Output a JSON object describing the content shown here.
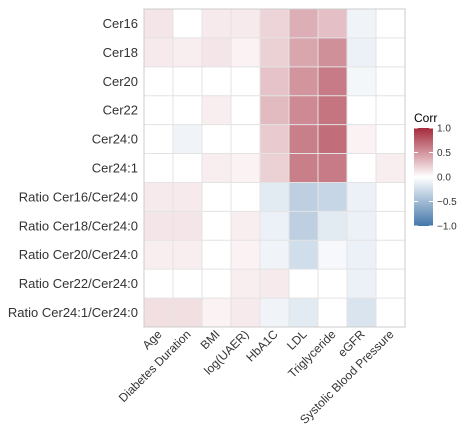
{
  "chart_data": {
    "type": "heatmap",
    "rows": [
      "Cer16",
      "Cer18",
      "Cer20",
      "Cer22",
      "Cer24:0",
      "Cer24:1",
      "Ratio Cer16/Cer24:0",
      "Ratio Cer18/Cer24:0",
      "Ratio Cer20/Cer24:0",
      "Ratio Cer22/Cer24:0",
      "Ratio Cer24:1/Cer24:0"
    ],
    "columns": [
      "Age",
      "Diabetes Duration",
      "BMI",
      "log(UAER)",
      "HbA1C",
      "LDL",
      "Triglyceride",
      "eGFR",
      "Systolic Blood Pressure"
    ],
    "values": [
      [
        0.12,
        0.0,
        0.1,
        0.1,
        0.2,
        0.38,
        0.3,
        -0.08,
        0.0
      ],
      [
        0.1,
        0.08,
        0.12,
        0.06,
        0.22,
        0.42,
        0.52,
        -0.1,
        0.0
      ],
      [
        0.0,
        0.0,
        0.0,
        0.0,
        0.28,
        0.5,
        0.62,
        -0.06,
        0.0
      ],
      [
        0.0,
        0.0,
        0.08,
        0.0,
        0.32,
        0.55,
        0.65,
        0.0,
        0.0
      ],
      [
        0.0,
        -0.08,
        0.0,
        0.0,
        0.25,
        0.6,
        0.68,
        0.06,
        0.0
      ],
      [
        0.0,
        0.0,
        0.08,
        0.06,
        0.22,
        0.6,
        0.62,
        0.0,
        0.08
      ],
      [
        0.1,
        0.1,
        0.0,
        0.0,
        -0.15,
        -0.35,
        -0.3,
        -0.1,
        0.0
      ],
      [
        0.12,
        0.12,
        0.0,
        0.08,
        -0.1,
        -0.35,
        -0.15,
        -0.1,
        0.0
      ],
      [
        0.08,
        0.08,
        0.0,
        0.06,
        -0.08,
        -0.25,
        -0.05,
        -0.1,
        0.0
      ],
      [
        0.0,
        0.0,
        0.0,
        0.08,
        0.1,
        0.0,
        0.0,
        -0.1,
        0.0
      ],
      [
        0.15,
        0.15,
        0.06,
        0.1,
        -0.08,
        -0.15,
        0.0,
        -0.2,
        0.0
      ]
    ],
    "legend": {
      "title": "Corr",
      "ticks": [
        1.0,
        0.5,
        0.0,
        -0.5,
        -1.0
      ],
      "tick_labels": [
        "1.0",
        "0.5",
        "0.0",
        "−0.5",
        "−1.0"
      ],
      "range": [
        -1.0,
        1.0
      ],
      "placement": "right"
    },
    "colors": {
      "positive": "#a52a3c",
      "neutral": "#ffffff",
      "negative": "#4477aa",
      "grid": "#e3e3e3",
      "border": "#cccccc"
    }
  }
}
